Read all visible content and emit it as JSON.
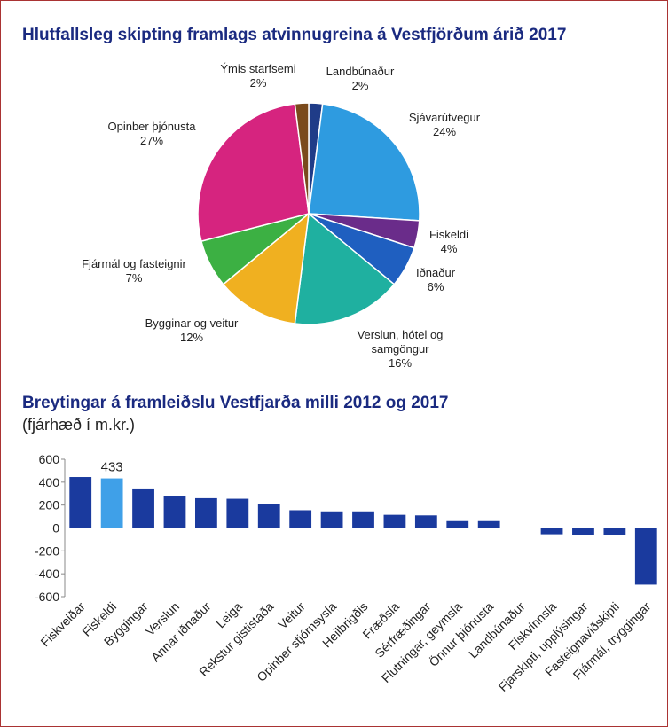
{
  "chart_data": [
    {
      "type": "pie",
      "title": "Hlutfallsleg skipting framlags atvinnugreina á Vestfjörðum árið 2017",
      "categories": [
        "Landbúnaður",
        "Sjávarútvegur",
        "Fiskeldi",
        "Iðnaður",
        "Verslun, hótel og samgöngur",
        "Bygginar og veitur",
        "Fjármál og fasteignir",
        "Opinber þjónusta",
        "Ýmis starfsemi"
      ],
      "values": [
        2,
        24,
        4,
        6,
        16,
        12,
        7,
        27,
        2
      ],
      "value_labels": [
        "2%",
        "24%",
        "4%",
        "6%",
        "16%",
        "12%",
        "7%",
        "27%",
        "2%"
      ],
      "colors": [
        "#1f3c88",
        "#2e9be0",
        "#6a2c8a",
        "#1f5fc0",
        "#1fb0a0",
        "#f0b020",
        "#3cb043",
        "#d6247f",
        "#7a4a1c"
      ]
    },
    {
      "type": "bar",
      "title": "Breytingar á framleiðslu Vestfjarða milli 2012 og 2017",
      "subtitle": "(fjárhæð í m.kr.)",
      "categories": [
        "Fiskveiðar",
        "Fiskeldi",
        "Byggingar",
        "Verslun",
        "Annar iðnaður",
        "Leiga",
        "Rekstur gististaða",
        "Veitur",
        "Opinber stjórnsýsla",
        "Heilbrigðis",
        "Fræðsla",
        "Sérfræðingar",
        "Flutningar, geymsla",
        "Önnur þjónusta",
        "Landbúnaður",
        "Fiskvinnsla",
        "Fjarskipti, upplýsingar",
        "Fasteignaviðskipti",
        "Fjármál, tryggingar"
      ],
      "values": [
        445,
        433,
        345,
        280,
        260,
        255,
        210,
        155,
        145,
        145,
        115,
        110,
        60,
        60,
        0,
        -55,
        -60,
        -65,
        -495
      ],
      "value_labels": [
        null,
        "433",
        null,
        null,
        null,
        null,
        null,
        null,
        null,
        null,
        null,
        null,
        null,
        null,
        null,
        null,
        null,
        null,
        null
      ],
      "colors": [
        "#1a3a9e",
        "#3fa0e8",
        "#1a3a9e",
        "#1a3a9e",
        "#1a3a9e",
        "#1a3a9e",
        "#1a3a9e",
        "#1a3a9e",
        "#1a3a9e",
        "#1a3a9e",
        "#1a3a9e",
        "#1a3a9e",
        "#1a3a9e",
        "#1a3a9e",
        "#1a3a9e",
        "#1a3a9e",
        "#1a3a9e",
        "#1a3a9e",
        "#1a3a9e"
      ],
      "ylim": [
        -600,
        600
      ],
      "yticks": [
        -600,
        -400,
        -200,
        0,
        200,
        400,
        600
      ]
    }
  ]
}
